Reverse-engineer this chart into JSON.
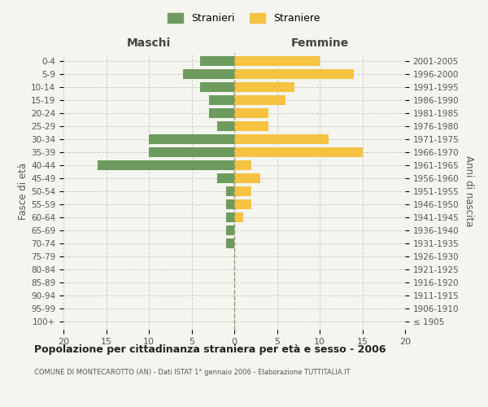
{
  "age_groups": [
    "100+",
    "95-99",
    "90-94",
    "85-89",
    "80-84",
    "75-79",
    "70-74",
    "65-69",
    "60-64",
    "55-59",
    "50-54",
    "45-49",
    "40-44",
    "35-39",
    "30-34",
    "25-29",
    "20-24",
    "15-19",
    "10-14",
    "5-9",
    "0-4"
  ],
  "birth_years": [
    "≤ 1905",
    "1906-1910",
    "1911-1915",
    "1916-1920",
    "1921-1925",
    "1926-1930",
    "1931-1935",
    "1936-1940",
    "1941-1945",
    "1946-1950",
    "1951-1955",
    "1956-1960",
    "1961-1965",
    "1966-1970",
    "1971-1975",
    "1976-1980",
    "1981-1985",
    "1986-1990",
    "1991-1995",
    "1996-2000",
    "2001-2005"
  ],
  "males": [
    0,
    0,
    0,
    0,
    0,
    0,
    1,
    1,
    1,
    1,
    1,
    2,
    16,
    10,
    10,
    2,
    3,
    3,
    4,
    6,
    4
  ],
  "females": [
    0,
    0,
    0,
    0,
    0,
    0,
    0,
    0,
    1,
    2,
    2,
    3,
    2,
    15,
    11,
    4,
    4,
    6,
    7,
    14,
    10
  ],
  "male_color": "#6d9b5e",
  "female_color": "#f5c242",
  "background_color": "#f5f5f0",
  "grid_color": "#cccccc",
  "title": "Popolazione per cittadinanza straniera per età e sesso - 2006",
  "subtitle": "COMUNE DI MONTECAROTTO (AN) - Dati ISTAT 1° gennaio 2006 - Elaborazione TUTTITALIA.IT",
  "xlabel_left": "Maschi",
  "xlabel_right": "Femmine",
  "ylabel_left": "Fasce di età",
  "ylabel_right": "Anni di nascita",
  "legend_male": "Stranieri",
  "legend_female": "Straniere",
  "xlim": 20,
  "bar_height": 0.75
}
